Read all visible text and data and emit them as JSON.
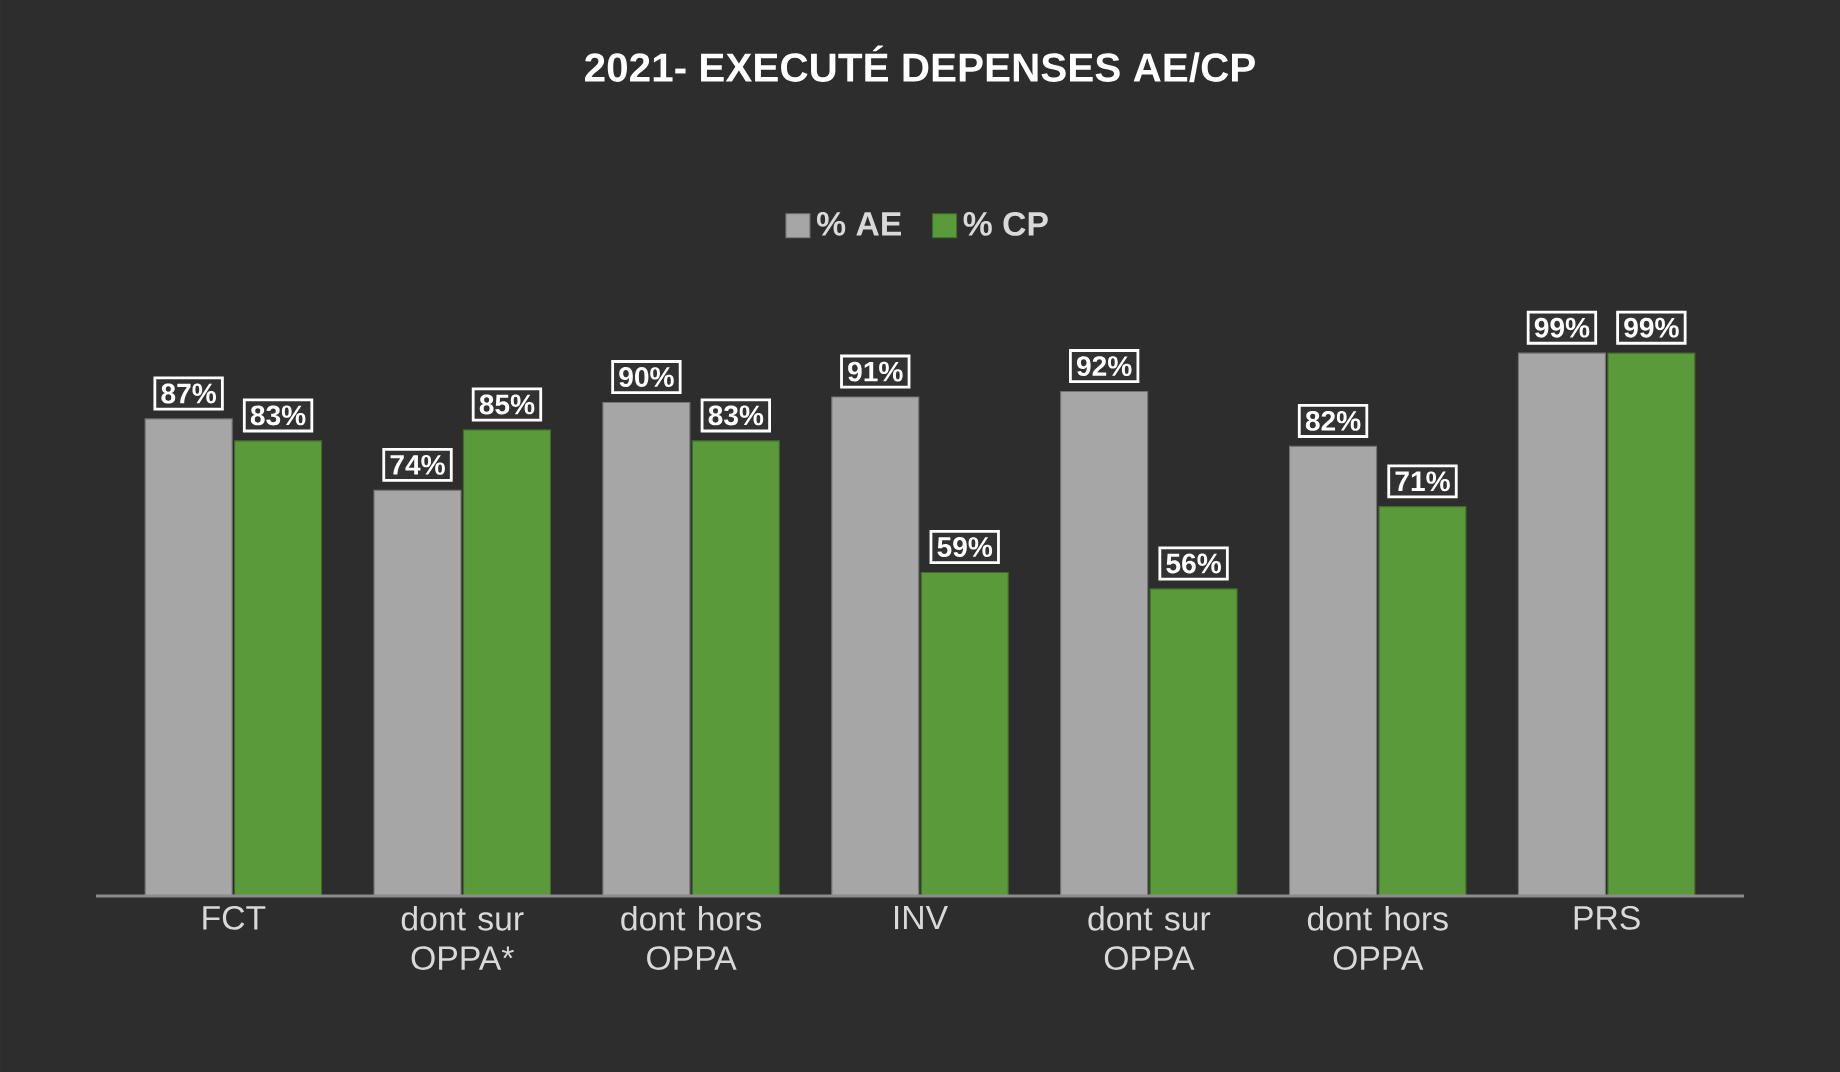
{
  "chart_data": {
    "type": "bar",
    "title": "2021- EXECUTÉ DEPENSES AE/CP",
    "categories": [
      "FCT",
      "dont sur OPPA*",
      "dont hors OPPA",
      "INV",
      "dont sur OPPA",
      "dont hors OPPA",
      "PRS"
    ],
    "legend": "top",
    "series": [
      {
        "name": "% AE",
        "color": "#a6a6a6",
        "values": [
          87,
          74,
          90,
          91,
          92,
          82,
          99
        ],
        "value_labels": [
          "87%",
          "74%",
          "90%",
          "91%",
          "92%",
          "82%",
          "99%"
        ]
      },
      {
        "name": "% CP",
        "color": "#5a9a3a",
        "values": [
          83,
          85,
          83,
          59,
          56,
          71,
          99
        ],
        "value_labels": [
          "83%",
          "85%",
          "83%",
          "59%",
          "56%",
          "71%",
          "99%"
        ]
      }
    ]
  }
}
